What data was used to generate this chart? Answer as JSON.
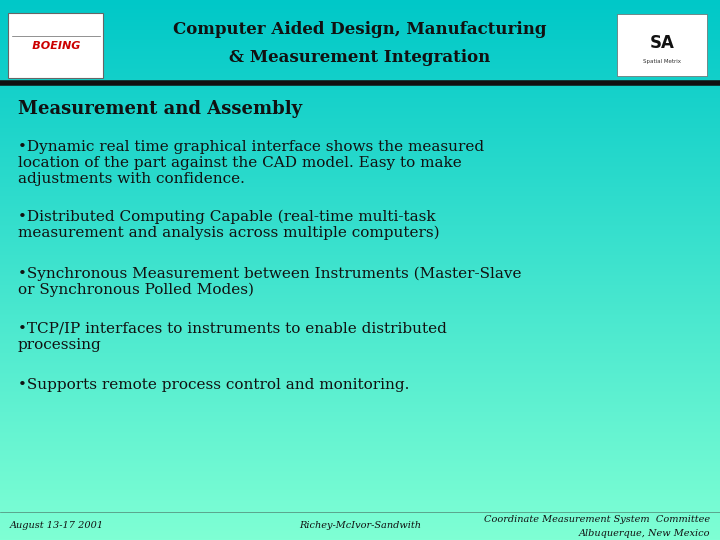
{
  "bg_color_top": "#00C8C8",
  "bg_color_bottom": "#7FFFD4",
  "header_line_color": "#111111",
  "title_line1": "Computer Aided Design, Manufacturing",
  "title_line2": "& Measurement Integration",
  "title_fontsize": 12,
  "title_color": "#111111",
  "section_title": "Measurement and Assembly",
  "section_fontsize": 13,
  "section_color": "#111111",
  "bullet1_line1": "•Dynamic real time graphical interface shows the measured",
  "bullet1_line2": "location of the part against the CAD model. Easy to make",
  "bullet1_line3": "adjustments with confidence.",
  "bullet2_line1": "•Distributed Computing Capable (real-time multi-task",
  "bullet2_line2": "measurement and analysis across multiple computers)",
  "bullet3_line1": "•Synchronous Measurement between Instruments (Master-Slave",
  "bullet3_line2": "or Synchronous Polled Modes)",
  "bullet4_line1": "•TCP/IP interfaces to instruments to enable distributed",
  "bullet4_line2": "processing",
  "bullet5_line1": "•Supports remote process control and monitoring.",
  "bullet_fontsize": 11,
  "bullet_color": "#111111",
  "footer_left": "August 13-17 2001",
  "footer_center": "Richey-McIvor-Sandwith",
  "footer_right_line1": "Coordinate Measurement System  Committee",
  "footer_right_line2": "Albuquerque, New Mexico",
  "footer_fontsize": 7,
  "footer_color": "#111111"
}
